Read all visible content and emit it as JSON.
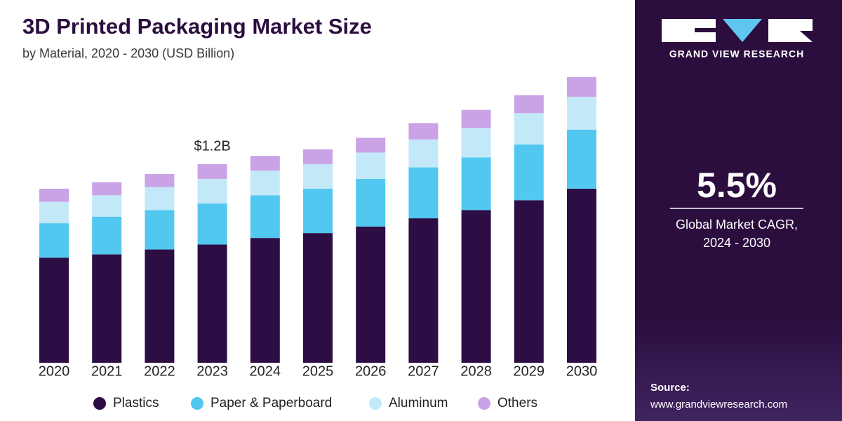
{
  "chart_data": {
    "type": "bar",
    "stacked": true,
    "title": "3D Printed Packaging Market Size",
    "subtitle": "by Material, 2020 - 2030 (USD Billion)",
    "categories": [
      "2020",
      "2021",
      "2022",
      "2023",
      "2024",
      "2025",
      "2026",
      "2027",
      "2028",
      "2029",
      "2030"
    ],
    "series": [
      {
        "name": "Plastics",
        "color": "#2c0e45",
        "values": [
          0.64,
          0.66,
          0.69,
          0.72,
          0.76,
          0.79,
          0.83,
          0.88,
          0.93,
          0.99,
          1.06
        ]
      },
      {
        "name": "Paper & Paperboard",
        "color": "#52c8f0",
        "values": [
          0.21,
          0.23,
          0.24,
          0.25,
          0.26,
          0.27,
          0.29,
          0.31,
          0.32,
          0.34,
          0.36
        ]
      },
      {
        "name": "Aluminum",
        "color": "#c3e9f9",
        "values": [
          0.13,
          0.13,
          0.14,
          0.15,
          0.15,
          0.15,
          0.16,
          0.17,
          0.18,
          0.19,
          0.2
        ]
      },
      {
        "name": "Others",
        "color": "#c9a3e6",
        "values": [
          0.08,
          0.08,
          0.08,
          0.09,
          0.09,
          0.09,
          0.09,
          0.1,
          0.11,
          0.11,
          0.12
        ]
      }
    ],
    "annotations": [
      {
        "text": "$1.2B",
        "value": 1.2,
        "category": "2023"
      }
    ],
    "legend": "bottom"
  },
  "panel": {
    "brand": "GRAND VIEW RESEARCH",
    "stat": "5.5%",
    "stat_caption": [
      "Global Market CAGR,",
      "2024 - 2030"
    ],
    "source_label": "Source:",
    "source_url": "www.grandviewresearch.com"
  }
}
